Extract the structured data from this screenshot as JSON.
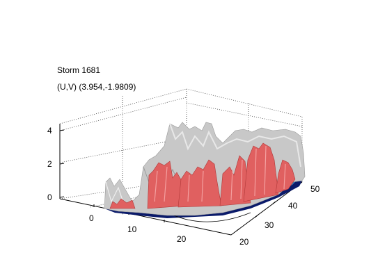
{
  "title": {
    "line1": "Storm 1681",
    "line2": "(U,V) (3.954,-1.9809)"
  },
  "axes": {
    "z_ticks": [
      "0",
      "2",
      "4"
    ],
    "x_ticks": [
      "0",
      "10",
      "20"
    ],
    "y_ticks": [
      "20",
      "30",
      "40",
      "50"
    ],
    "grid": true,
    "style": "dotted box"
  },
  "colors": {
    "outer_surface": "#c8c8c8",
    "inner_surface": "#e06060",
    "base_dark": "#0a1a6a",
    "base_mid": "#3a7ab0",
    "base_light": "#70c070"
  }
}
